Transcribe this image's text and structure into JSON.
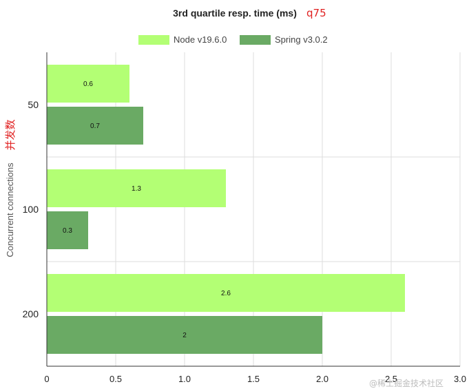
{
  "chart_data": {
    "type": "bar",
    "orientation": "horizontal",
    "title": "3rd quartile resp. time (ms)",
    "annotation": "q75",
    "ylabel": "Concurrent connections",
    "ylabel_annotation": "并发数",
    "categories": [
      "50",
      "100",
      "200"
    ],
    "series": [
      {
        "name": "Node v19.6.0",
        "color": "#b3ff74",
        "values": [
          0.6,
          1.3,
          2.6
        ]
      },
      {
        "name": "Spring v3.0.2",
        "color": "#6aaa64",
        "values": [
          0.7,
          0.3,
          2
        ]
      }
    ],
    "xlim": [
      0,
      3.0
    ],
    "xticks": [
      "0",
      "0.5",
      "1.0",
      "1.5",
      "2.0",
      "2.5",
      "3.0"
    ],
    "grid": true,
    "legend": "top",
    "watermark": "@稀土掘金技术社区"
  }
}
